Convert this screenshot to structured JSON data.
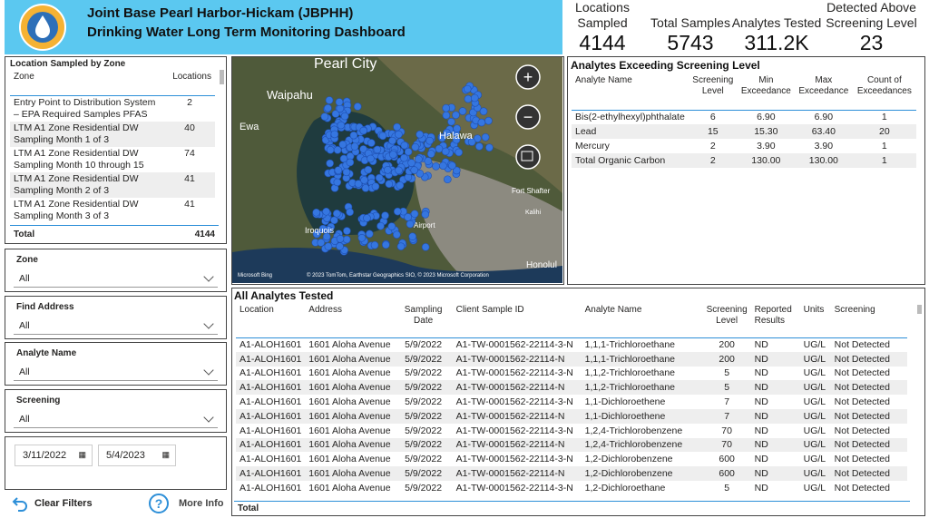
{
  "header": {
    "title": "Joint Base Pearl Harbor-Hickam (JBPHH)",
    "subtitle": "Drinking Water Long Term Monitoring Dashboard"
  },
  "kpis": [
    {
      "label": "Locations Sampled",
      "value": "4144"
    },
    {
      "label": "Total Samples",
      "value": "5743"
    },
    {
      "label": "Analytes Tested",
      "value": "311.2K"
    },
    {
      "label": "Detected Above Screening Level",
      "value": "23"
    }
  ],
  "zone_table": {
    "title": "Location Sampled by Zone",
    "headers": [
      "Zone",
      "Locations"
    ],
    "rows": [
      [
        "Entry Point to Distribution System – EPA Required Samples PFAS",
        "2"
      ],
      [
        "LTM A1 Zone Residential DW Sampling Month 1 of 3",
        "40"
      ],
      [
        "LTM A1 Zone Residential DW Sampling Month 10 through 15",
        "74"
      ],
      [
        "LTM A1 Zone Residential DW Sampling Month 2 of 3",
        "41"
      ],
      [
        "LTM A1 Zone Residential DW Sampling Month 3 of 3",
        "41"
      ]
    ],
    "total": [
      "Total",
      "4144"
    ]
  },
  "filters": [
    {
      "label": "Zone",
      "value": "All"
    },
    {
      "label": "Find Address",
      "value": "All"
    },
    {
      "label": "Analyte Name",
      "value": "All"
    },
    {
      "label": "Screening",
      "value": "All"
    }
  ],
  "dates": [
    "3/11/2022",
    "5/4/2023"
  ],
  "buttons": [
    "Clear Filters",
    "More Info"
  ],
  "map": {
    "labels": [
      "Pearl City",
      "Waipahu",
      "Ewa",
      "Halawa",
      "Fort Shafter",
      "Kalihi",
      "Iroquois",
      "Airport",
      "Honolul"
    ],
    "attribution": "Microsoft Bing",
    "copyright": "© 2023 TomTom, Earthstar Geographics SIO, © 2023 Microsoft Corporation"
  },
  "exceed_table": {
    "title": "Analytes Exceeding Screening Level",
    "headers": [
      "Analyte Name",
      "Screening Level",
      "Min Exceedance",
      "Max Exceedance",
      "Count of Exceedances"
    ],
    "rows": [
      [
        "Bis(2-ethylhexyl)phthalate",
        "6",
        "6.90",
        "6.90",
        "1"
      ],
      [
        "Lead",
        "15",
        "15.30",
        "63.40",
        "20"
      ],
      [
        "Mercury",
        "2",
        "3.90",
        "3.90",
        "1"
      ],
      [
        "Total Organic Carbon",
        "2",
        "130.00",
        "130.00",
        "1"
      ]
    ]
  },
  "analytes_table": {
    "title": "All Analytes Tested",
    "headers": [
      "Location",
      "Address",
      "Sampling Date",
      "Client Sample ID",
      "Analyte Name",
      "Screening Level",
      "Reported Results",
      "Units",
      "Screening"
    ],
    "rows": [
      [
        "A1-ALOH1601",
        "1601 Aloha Avenue",
        "5/9/2022",
        "A1-TW-0001562-22114-3-N",
        "1,1,1-Trichloroethane",
        "200",
        "ND",
        "UG/L",
        "Not Detected"
      ],
      [
        "A1-ALOH1601",
        "1601 Aloha Avenue",
        "5/9/2022",
        "A1-TW-0001562-22114-N",
        "1,1,1-Trichloroethane",
        "200",
        "ND",
        "UG/L",
        "Not Detected"
      ],
      [
        "A1-ALOH1601",
        "1601 Aloha Avenue",
        "5/9/2022",
        "A1-TW-0001562-22114-3-N",
        "1,1,2-Trichloroethane",
        "5",
        "ND",
        "UG/L",
        "Not Detected"
      ],
      [
        "A1-ALOH1601",
        "1601 Aloha Avenue",
        "5/9/2022",
        "A1-TW-0001562-22114-N",
        "1,1,2-Trichloroethane",
        "5",
        "ND",
        "UG/L",
        "Not Detected"
      ],
      [
        "A1-ALOH1601",
        "1601 Aloha Avenue",
        "5/9/2022",
        "A1-TW-0001562-22114-3-N",
        "1,1-Dichloroethene",
        "7",
        "ND",
        "UG/L",
        "Not Detected"
      ],
      [
        "A1-ALOH1601",
        "1601 Aloha Avenue",
        "5/9/2022",
        "A1-TW-0001562-22114-N",
        "1,1-Dichloroethene",
        "7",
        "ND",
        "UG/L",
        "Not Detected"
      ],
      [
        "A1-ALOH1601",
        "1601 Aloha Avenue",
        "5/9/2022",
        "A1-TW-0001562-22114-3-N",
        "1,2,4-Trichlorobenzene",
        "70",
        "ND",
        "UG/L",
        "Not Detected"
      ],
      [
        "A1-ALOH1601",
        "1601 Aloha Avenue",
        "5/9/2022",
        "A1-TW-0001562-22114-N",
        "1,2,4-Trichlorobenzene",
        "70",
        "ND",
        "UG/L",
        "Not Detected"
      ],
      [
        "A1-ALOH1601",
        "1601 Aloha Avenue",
        "5/9/2022",
        "A1-TW-0001562-22114-3-N",
        "1,2-Dichlorobenzene",
        "600",
        "ND",
        "UG/L",
        "Not Detected"
      ],
      [
        "A1-ALOH1601",
        "1601 Aloha Avenue",
        "5/9/2022",
        "A1-TW-0001562-22114-N",
        "1,2-Dichlorobenzene",
        "600",
        "ND",
        "UG/L",
        "Not Detected"
      ],
      [
        "A1-ALOH1601",
        "1601 Aloha Avenue",
        "5/9/2022",
        "A1-TW-0001562-22114-3-N",
        "1,2-Dichloroethane",
        "5",
        "ND",
        "UG/L",
        "Not Detected"
      ]
    ],
    "total": "Total"
  }
}
